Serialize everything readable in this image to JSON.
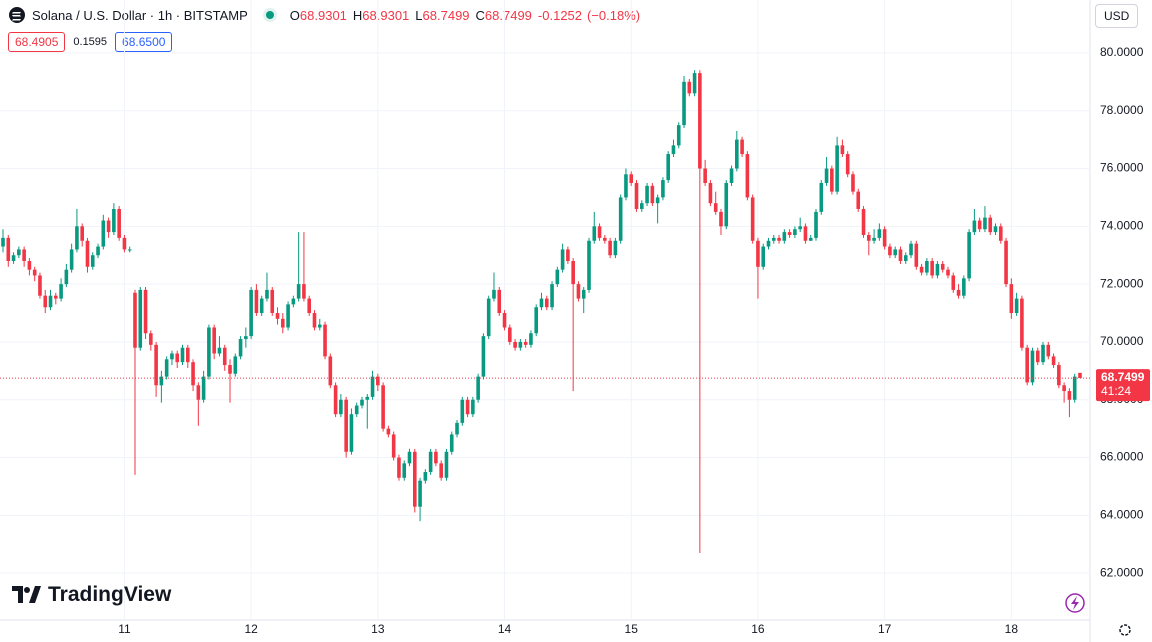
{
  "chart_data": {
    "type": "candlestick",
    "symbol": "Solana / U.S. Dollar · 1h · BITSTAMP",
    "fields": [
      {
        "label": "O",
        "value": 68.9301
      },
      {
        "label": "H",
        "value": 68.9301
      },
      {
        "label": "L",
        "value": 68.7499
      },
      {
        "label": "C",
        "value": 68.7499
      }
    ],
    "change": -0.1252,
    "change_pct": {
      "value": -0.18,
      "label": "(−0.18%)"
    },
    "bid": 68.4905,
    "spread": 0.1595,
    "ask": {
      "value": 68.65,
      "label": "68.6500"
    },
    "currency": "USD",
    "brand": "TradingView",
    "last_price": 68.7499,
    "countdown": "41:24",
    "up_color": "#089981",
    "down_color": "#f23645",
    "grid": true,
    "ylim": [
      60.38,
      81.83
    ],
    "yticks": [
      {
        "value": 62,
        "label": "62.0000"
      },
      {
        "value": 64,
        "label": "64.0000"
      },
      {
        "value": 66,
        "label": "66.0000"
      },
      {
        "value": 68,
        "label": "68.0000"
      },
      {
        "value": 70,
        "label": "70.0000"
      },
      {
        "value": 72,
        "label": "72.0000"
      },
      {
        "value": 74,
        "label": "74.0000"
      },
      {
        "value": 76,
        "label": "76.0000"
      },
      {
        "value": 78,
        "label": "78.0000"
      },
      {
        "value": 80,
        "label": "80.0000"
      }
    ],
    "xlim": [
      -0.57,
      205.9
    ],
    "xticks": [
      {
        "value": 23,
        "label": "11"
      },
      {
        "value": 47,
        "label": "12"
      },
      {
        "value": 71,
        "label": "13"
      },
      {
        "value": 95,
        "label": "14"
      },
      {
        "value": 119,
        "label": "15"
      },
      {
        "value": 143,
        "label": "16"
      },
      {
        "value": 167,
        "label": "17"
      },
      {
        "value": 191,
        "label": "18"
      }
    ],
    "ohlc": [
      [
        73.3,
        73.9,
        73.1,
        73.6
      ],
      [
        73.6,
        73.7,
        72.6,
        72.8
      ],
      [
        72.8,
        73.1,
        72.7,
        73.0
      ],
      [
        73.0,
        73.3,
        72.9,
        73.2
      ],
      [
        73.2,
        73.3,
        72.6,
        72.8
      ],
      [
        72.8,
        72.9,
        72.3,
        72.5
      ],
      [
        72.5,
        72.6,
        72.1,
        72.3
      ],
      [
        72.3,
        72.4,
        71.5,
        71.6
      ],
      [
        71.6,
        71.8,
        71.0,
        71.2
      ],
      [
        71.2,
        71.8,
        71.1,
        71.6
      ],
      [
        71.6,
        71.7,
        71.3,
        71.5
      ],
      [
        71.5,
        72.2,
        71.4,
        72.0
      ],
      [
        72.0,
        72.7,
        71.9,
        72.5
      ],
      [
        72.5,
        73.4,
        72.4,
        73.2
      ],
      [
        73.2,
        74.6,
        73.1,
        74.0
      ],
      [
        74.0,
        74.1,
        73.3,
        73.5
      ],
      [
        73.5,
        73.6,
        72.4,
        72.6
      ],
      [
        72.6,
        73.1,
        72.5,
        73.0
      ],
      [
        73.0,
        73.4,
        72.9,
        73.3
      ],
      [
        73.3,
        74.4,
        73.2,
        74.2
      ],
      [
        74.2,
        74.3,
        73.6,
        73.8
      ],
      [
        73.8,
        74.8,
        73.7,
        74.6
      ],
      [
        74.6,
        74.7,
        73.5,
        73.6
      ],
      [
        73.6,
        73.7,
        73.1,
        73.2
      ],
      [
        73.2,
        73.3,
        73.1,
        73.2
      ],
      [
        71.7,
        71.8,
        65.4,
        69.8
      ],
      [
        69.8,
        71.9,
        69.7,
        71.8
      ],
      [
        71.8,
        71.9,
        70.1,
        70.3
      ],
      [
        70.3,
        70.4,
        69.7,
        69.9
      ],
      [
        69.9,
        70.0,
        68.1,
        68.5
      ],
      [
        68.5,
        69.0,
        67.9,
        68.8
      ],
      [
        68.8,
        69.5,
        68.7,
        69.4
      ],
      [
        69.4,
        69.7,
        69.2,
        69.6
      ],
      [
        69.6,
        69.7,
        69.1,
        69.3
      ],
      [
        69.3,
        69.9,
        69.2,
        69.8
      ],
      [
        69.8,
        69.9,
        69.1,
        69.3
      ],
      [
        69.3,
        69.4,
        68.3,
        68.5
      ],
      [
        68.5,
        68.6,
        67.1,
        68.0
      ],
      [
        68.0,
        69.0,
        67.9,
        68.8
      ],
      [
        68.8,
        70.6,
        68.7,
        70.5
      ],
      [
        70.5,
        70.6,
        69.4,
        69.6
      ],
      [
        69.6,
        70.2,
        69.5,
        69.8
      ],
      [
        69.8,
        69.9,
        69.0,
        69.2
      ],
      [
        69.2,
        69.4,
        67.9,
        68.9
      ],
      [
        68.9,
        69.6,
        68.8,
        69.5
      ],
      [
        69.5,
        70.2,
        69.4,
        70.1
      ],
      [
        70.1,
        70.5,
        69.8,
        70.2
      ],
      [
        70.2,
        71.9,
        70.1,
        71.8
      ],
      [
        71.8,
        72.0,
        70.9,
        71.0
      ],
      [
        71.0,
        71.6,
        70.9,
        71.5
      ],
      [
        71.5,
        72.4,
        71.4,
        71.8
      ],
      [
        71.8,
        71.9,
        70.9,
        71.0
      ],
      [
        71.0,
        71.2,
        70.6,
        70.8
      ],
      [
        70.8,
        71.0,
        70.3,
        70.5
      ],
      [
        70.5,
        71.4,
        70.4,
        71.3
      ],
      [
        71.3,
        71.6,
        71.2,
        71.5
      ],
      [
        71.5,
        73.8,
        71.4,
        72.0
      ],
      [
        72.0,
        73.8,
        71.4,
        71.5
      ],
      [
        71.5,
        71.6,
        70.9,
        71.0
      ],
      [
        71.0,
        71.1,
        70.4,
        70.5
      ],
      [
        70.5,
        70.8,
        70.4,
        70.6
      ],
      [
        70.6,
        70.7,
        69.4,
        69.5
      ],
      [
        69.5,
        69.6,
        68.4,
        68.5
      ],
      [
        68.5,
        68.6,
        67.4,
        67.5
      ],
      [
        67.5,
        68.2,
        67.4,
        68.0
      ],
      [
        68.0,
        68.1,
        66.0,
        66.2
      ],
      [
        66.2,
        67.7,
        66.1,
        67.5
      ],
      [
        67.5,
        67.9,
        67.4,
        67.8
      ],
      [
        67.8,
        68.1,
        67.7,
        68.0
      ],
      [
        68.0,
        68.2,
        67.0,
        68.1
      ],
      [
        68.1,
        69.0,
        68.0,
        68.8
      ],
      [
        68.8,
        68.9,
        68.3,
        68.5
      ],
      [
        68.5,
        68.6,
        66.9,
        67.0
      ],
      [
        67.0,
        67.1,
        66.7,
        66.8
      ],
      [
        66.8,
        66.9,
        65.9,
        66.0
      ],
      [
        66.0,
        66.1,
        65.2,
        65.3
      ],
      [
        65.3,
        65.9,
        65.2,
        65.8
      ],
      [
        65.8,
        66.3,
        65.7,
        66.2
      ],
      [
        66.2,
        66.3,
        64.1,
        64.3
      ],
      [
        64.3,
        65.3,
        63.8,
        65.2
      ],
      [
        65.2,
        65.6,
        65.1,
        65.5
      ],
      [
        65.5,
        66.3,
        65.4,
        66.2
      ],
      [
        66.2,
        66.3,
        65.7,
        65.8
      ],
      [
        65.8,
        65.9,
        65.2,
        65.3
      ],
      [
        65.3,
        66.3,
        65.2,
        66.2
      ],
      [
        66.2,
        66.9,
        66.1,
        66.8
      ],
      [
        66.8,
        67.3,
        66.7,
        67.2
      ],
      [
        67.2,
        68.1,
        67.1,
        68.0
      ],
      [
        68.0,
        68.1,
        67.4,
        67.5
      ],
      [
        67.5,
        68.1,
        67.4,
        68.0
      ],
      [
        68.0,
        68.9,
        67.9,
        68.8
      ],
      [
        68.8,
        70.3,
        68.7,
        70.2
      ],
      [
        70.2,
        71.6,
        70.1,
        71.5
      ],
      [
        71.5,
        72.4,
        71.4,
        71.8
      ],
      [
        71.8,
        71.9,
        70.9,
        71.0
      ],
      [
        71.0,
        71.1,
        70.4,
        70.5
      ],
      [
        70.5,
        70.6,
        69.9,
        70.0
      ],
      [
        70.0,
        70.1,
        69.7,
        69.8
      ],
      [
        69.8,
        70.1,
        69.7,
        70.0
      ],
      [
        70.0,
        70.1,
        69.8,
        69.9
      ],
      [
        69.9,
        70.4,
        69.8,
        70.3
      ],
      [
        70.3,
        71.3,
        70.2,
        71.2
      ],
      [
        71.2,
        71.7,
        71.1,
        71.5
      ],
      [
        71.5,
        71.6,
        71.1,
        71.2
      ],
      [
        71.2,
        72.1,
        71.1,
        72.0
      ],
      [
        72.0,
        72.6,
        71.9,
        72.5
      ],
      [
        72.5,
        73.4,
        72.4,
        73.2
      ],
      [
        73.2,
        73.3,
        72.7,
        72.8
      ],
      [
        72.8,
        72.9,
        68.3,
        72.0
      ],
      [
        72.0,
        72.1,
        71.4,
        71.5
      ],
      [
        71.5,
        71.9,
        71.0,
        71.8
      ],
      [
        71.8,
        73.6,
        71.7,
        73.5
      ],
      [
        73.5,
        74.5,
        73.4,
        74.0
      ],
      [
        74.0,
        74.1,
        73.5,
        73.6
      ],
      [
        73.6,
        73.7,
        73.4,
        73.5
      ],
      [
        73.5,
        73.6,
        72.9,
        73.0
      ],
      [
        73.0,
        73.6,
        72.9,
        73.5
      ],
      [
        73.5,
        75.1,
        73.4,
        75.0
      ],
      [
        75.0,
        76.0,
        74.9,
        75.8
      ],
      [
        75.8,
        75.9,
        75.4,
        75.5
      ],
      [
        75.5,
        75.6,
        74.5,
        74.6
      ],
      [
        74.6,
        74.9,
        74.5,
        74.8
      ],
      [
        74.8,
        75.5,
        74.7,
        75.4
      ],
      [
        75.4,
        75.5,
        74.7,
        74.8
      ],
      [
        74.8,
        75.1,
        74.1,
        75.0
      ],
      [
        75.0,
        75.7,
        74.9,
        75.6
      ],
      [
        75.6,
        76.6,
        75.5,
        76.5
      ],
      [
        76.5,
        77.0,
        76.4,
        76.8
      ],
      [
        76.8,
        77.6,
        76.7,
        77.5
      ],
      [
        77.5,
        79.2,
        77.4,
        79.0
      ],
      [
        79.0,
        79.1,
        78.5,
        78.6
      ],
      [
        78.6,
        79.4,
        78.5,
        79.3
      ],
      [
        79.3,
        79.4,
        62.7,
        76.0
      ],
      [
        76.0,
        76.3,
        75.4,
        75.5
      ],
      [
        75.5,
        75.6,
        74.7,
        74.8
      ],
      [
        74.8,
        75.2,
        74.4,
        74.5
      ],
      [
        74.5,
        74.6,
        73.7,
        74.0
      ],
      [
        74.0,
        75.6,
        73.9,
        75.5
      ],
      [
        75.5,
        76.1,
        75.4,
        76.0
      ],
      [
        76.0,
        77.3,
        75.9,
        77.0
      ],
      [
        77.0,
        77.1,
        76.4,
        76.5
      ],
      [
        76.5,
        76.6,
        74.9,
        75.0
      ],
      [
        75.0,
        75.1,
        73.4,
        73.5
      ],
      [
        73.5,
        73.6,
        71.5,
        72.6
      ],
      [
        72.6,
        73.4,
        72.5,
        73.3
      ],
      [
        73.3,
        73.6,
        73.2,
        73.5
      ],
      [
        73.5,
        73.7,
        73.4,
        73.6
      ],
      [
        73.6,
        73.7,
        73.4,
        73.5
      ],
      [
        73.5,
        73.9,
        73.4,
        73.8
      ],
      [
        73.8,
        73.9,
        73.6,
        73.7
      ],
      [
        73.7,
        74.0,
        73.6,
        73.9
      ],
      [
        73.9,
        74.3,
        73.8,
        74.0
      ],
      [
        74.0,
        74.1,
        73.4,
        73.5
      ],
      [
        73.5,
        73.7,
        73.5,
        73.6
      ],
      [
        73.6,
        74.6,
        73.5,
        74.5
      ],
      [
        74.5,
        75.6,
        74.4,
        75.5
      ],
      [
        75.5,
        76.4,
        75.4,
        76.0
      ],
      [
        76.0,
        76.1,
        75.1,
        75.2
      ],
      [
        75.2,
        77.1,
        75.1,
        76.8
      ],
      [
        76.8,
        77.0,
        76.4,
        76.5
      ],
      [
        76.5,
        76.6,
        75.7,
        75.8
      ],
      [
        75.8,
        75.9,
        75.1,
        75.2
      ],
      [
        75.2,
        75.3,
        74.5,
        74.6
      ],
      [
        74.6,
        74.7,
        73.6,
        73.7
      ],
      [
        73.7,
        73.8,
        73.0,
        73.5
      ],
      [
        73.5,
        73.9,
        73.4,
        73.6
      ],
      [
        73.6,
        74.1,
        73.5,
        73.9
      ],
      [
        73.9,
        74.0,
        73.2,
        73.3
      ],
      [
        73.3,
        73.4,
        72.9,
        73.0
      ],
      [
        73.0,
        73.3,
        72.9,
        73.2
      ],
      [
        73.2,
        73.3,
        72.7,
        72.8
      ],
      [
        72.8,
        73.1,
        72.7,
        73.0
      ],
      [
        73.0,
        73.5,
        72.9,
        73.4
      ],
      [
        73.4,
        73.5,
        72.5,
        72.6
      ],
      [
        72.6,
        72.7,
        72.3,
        72.4
      ],
      [
        72.4,
        72.9,
        72.3,
        72.8
      ],
      [
        72.8,
        72.9,
        72.2,
        72.3
      ],
      [
        72.3,
        72.8,
        72.2,
        72.7
      ],
      [
        72.7,
        72.8,
        72.4,
        72.5
      ],
      [
        72.5,
        72.6,
        72.2,
        72.3
      ],
      [
        72.3,
        72.4,
        71.7,
        71.8
      ],
      [
        71.8,
        72.0,
        71.5,
        71.6
      ],
      [
        71.6,
        72.3,
        71.5,
        72.2
      ],
      [
        72.2,
        73.9,
        72.1,
        73.8
      ],
      [
        73.8,
        74.6,
        73.7,
        74.2
      ],
      [
        74.2,
        74.3,
        73.8,
        73.9
      ],
      [
        73.9,
        74.7,
        73.8,
        74.3
      ],
      [
        74.3,
        74.4,
        73.7,
        73.8
      ],
      [
        73.8,
        74.1,
        73.7,
        74.0
      ],
      [
        74.0,
        74.1,
        73.4,
        73.5
      ],
      [
        73.5,
        73.6,
        71.9,
        72.0
      ],
      [
        72.0,
        72.2,
        70.8,
        71.0
      ],
      [
        71.0,
        71.7,
        70.9,
        71.5
      ],
      [
        71.5,
        71.6,
        69.7,
        69.8
      ],
      [
        69.8,
        69.9,
        68.5,
        68.6
      ],
      [
        68.6,
        69.8,
        68.5,
        69.7
      ],
      [
        69.7,
        69.8,
        69.2,
        69.3
      ],
      [
        69.3,
        70.0,
        69.2,
        69.9
      ],
      [
        69.9,
        70.0,
        69.4,
        69.5
      ],
      [
        69.5,
        69.6,
        69.1,
        69.2
      ],
      [
        69.2,
        69.3,
        68.4,
        68.5
      ],
      [
        68.5,
        68.6,
        67.9,
        68.3
      ],
      [
        68.3,
        68.4,
        67.4,
        68.0
      ],
      [
        68.0,
        68.9,
        67.9,
        68.8
      ],
      [
        68.9301,
        68.9301,
        68.7499,
        68.7499
      ]
    ]
  }
}
